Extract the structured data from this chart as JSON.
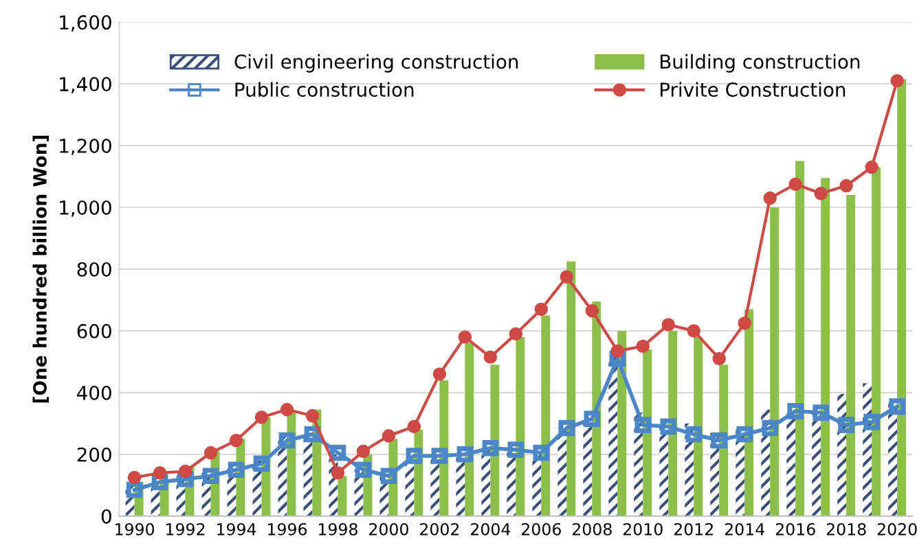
{
  "chart_data": {
    "type": "bar",
    "ylabel": "[One hundred billion Won]",
    "categories": [
      "1990",
      null,
      "1992",
      null,
      "1994",
      null,
      "1996",
      null,
      "1998",
      null,
      "2000",
      null,
      "2002",
      null,
      "2004",
      null,
      "2006",
      null,
      "2008",
      null,
      "2010",
      null,
      "2012",
      null,
      "2014",
      null,
      "2016",
      null,
      "2018",
      null,
      "2020"
    ],
    "series": [
      {
        "name": "Civil engineering construction",
        "color": "#3b4e7a",
        "values": [
          100,
          115,
          130,
          140,
          160,
          180,
          270,
          270,
          200,
          150,
          130,
          190,
          190,
          195,
          215,
          210,
          200,
          285,
          315,
          520,
          335,
          310,
          300,
          270,
          280,
          345,
          340,
          340,
          395,
          430,
          375
        ]
      },
      {
        "name": "Building construction",
        "color": "#8cbf4a",
        "values": [
          110,
          120,
          160,
          210,
          250,
          320,
          340,
          345,
          130,
          200,
          250,
          280,
          440,
          560,
          490,
          580,
          650,
          825,
          695,
          600,
          540,
          600,
          580,
          490,
          670,
          1000,
          1150,
          1095,
          1040,
          1130,
          1415
        ]
      },
      {
        "name": "Public construction",
        "type": "line",
        "marker": "square",
        "color": "#4a86c8",
        "values": [
          85,
          110,
          120,
          130,
          150,
          170,
          245,
          265,
          205,
          150,
          130,
          195,
          195,
          200,
          220,
          215,
          205,
          285,
          315,
          510,
          295,
          290,
          265,
          245,
          265,
          285,
          340,
          335,
          295,
          305,
          355
        ]
      },
      {
        "name": "Privite Construction",
        "type": "line",
        "marker": "circle",
        "color": "#d04a45",
        "values": [
          125,
          140,
          145,
          205,
          245,
          320,
          345,
          325,
          140,
          210,
          260,
          290,
          460,
          580,
          515,
          590,
          670,
          775,
          665,
          535,
          550,
          620,
          600,
          510,
          625,
          1030,
          1075,
          1045,
          1070,
          1130,
          1410
        ]
      }
    ],
    "ylim": [
      0,
      1600
    ],
    "yticks": [
      0,
      200,
      400,
      600,
      800,
      {
        "value": 1000,
        "label": "1,000"
      },
      {
        "value": 1200,
        "label": "1,200"
      },
      {
        "value": 1400,
        "label": "1,400"
      },
      {
        "value": 1600,
        "label": "1,600"
      }
    ],
    "grid": "y",
    "legend": "top"
  }
}
